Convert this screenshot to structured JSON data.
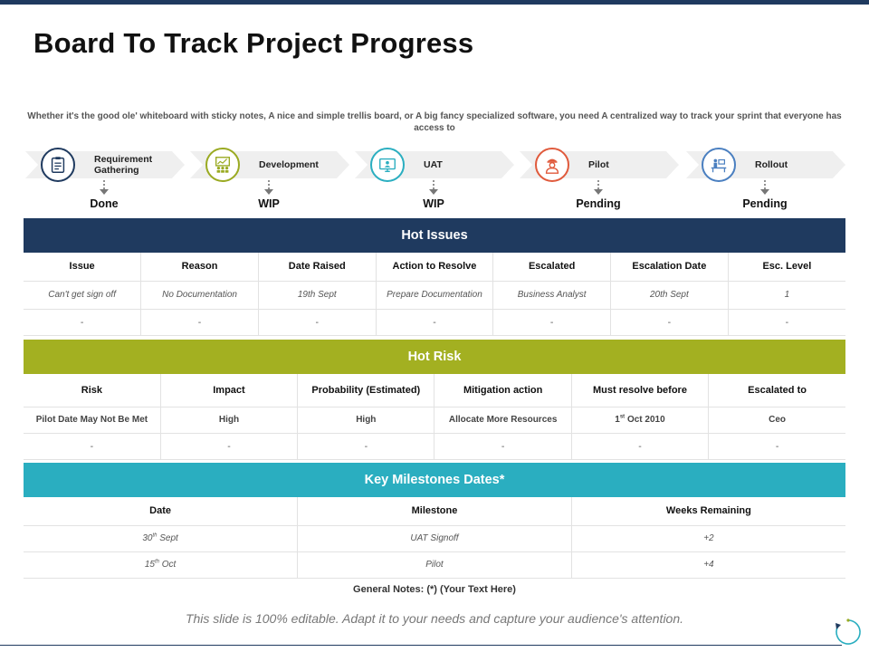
{
  "title": "Board To Track Project Progress",
  "intro": "Whether it's the good ole' whiteboard with sticky notes, A nice and simple trellis board, or A big fancy specialized software, you need A centralized way to track your sprint that everyone has access to",
  "stages": [
    {
      "label": "Requirement Gathering",
      "status": "Done",
      "icon": "clipboard-icon",
      "color": "#1f3a5f"
    },
    {
      "label": "Development",
      "status": "WIP",
      "icon": "team-board-icon",
      "color": "#9aaa22"
    },
    {
      "label": "UAT",
      "status": "WIP",
      "icon": "monitor-user-icon",
      "color": "#2aaec0"
    },
    {
      "label": "Pilot",
      "status": "Pending",
      "icon": "pilot-icon",
      "color": "#e05a3c"
    },
    {
      "label": "Rollout",
      "status": "Pending",
      "icon": "office-desk-icon",
      "color": "#4a7fc0"
    }
  ],
  "hot_issues": {
    "title": "Hot Issues",
    "color": "#1f3a5f",
    "headers": [
      "Issue",
      "Reason",
      "Date Raised",
      "Action to Resolve",
      "Escalated",
      "Escalation Date",
      "Esc. Level"
    ],
    "rows": [
      [
        "Can't get sign off",
        "No Documentation",
        "19th Sept",
        "Prepare Documentation",
        "Business Analyst",
        "20th Sept",
        "1"
      ],
      [
        "-",
        "-",
        "-",
        "-",
        "-",
        "-",
        "-"
      ]
    ]
  },
  "hot_risk": {
    "title": "Hot Risk",
    "color": "#a3b021",
    "headers": [
      "Risk",
      "Impact",
      "Probability (Estimated)",
      "Mitigation action",
      "Must resolve before",
      "Escalated to"
    ],
    "row1": {
      "risk": "Pilot Date May Not Be Met",
      "impact": "High",
      "probability": "High",
      "mitigation": "Allocate More Resources",
      "resolve_day": "1",
      "resolve_sup": "st",
      "resolve_rest": " Oct 2010",
      "escalated": "Ceo"
    },
    "row2": [
      "-",
      "-",
      "-",
      "-",
      "-",
      "-"
    ]
  },
  "milestones": {
    "title": "Key Milestones Dates*",
    "color": "#2aaec0",
    "headers": [
      "Date",
      "Milestone",
      "Weeks Remaining"
    ],
    "rows": [
      {
        "day": "30",
        "sup": "th",
        "rest": " Sept",
        "milestone": "UAT Signoff",
        "weeks": "+2"
      },
      {
        "day": "15",
        "sup": "th",
        "rest": " Oct",
        "milestone": "Pilot",
        "weeks": "+4"
      }
    ]
  },
  "notes": "General Notes: (*) (Your Text Here)",
  "footer": "This slide is 100% editable. Adapt it to your needs and capture your audience's attention."
}
